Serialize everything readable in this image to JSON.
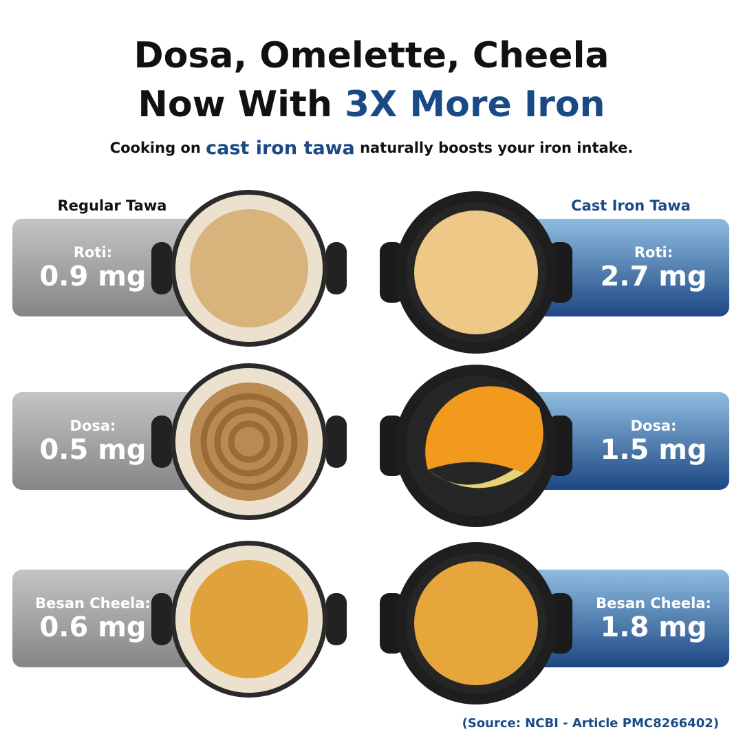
{
  "header": {
    "title_line1": "Dosa, Omelette, Cheela",
    "title_line2_prefix": "Now With",
    "title_line2_highlight": "3X More Iron",
    "subtitle_prefix": "Cooking on",
    "subtitle_highlight": "cast iron tawa",
    "subtitle_suffix": "naturally boosts your iron intake."
  },
  "columns": [
    {
      "label": "Regular Tawa",
      "items": [
        {
          "name": "Roti:",
          "value": "0.9 mg"
        },
        {
          "name": "Dosa:",
          "value": "0.5 mg"
        },
        {
          "name": "Besan Cheela:",
          "value": "0.6 mg"
        }
      ]
    },
    {
      "label": "Cast Iron Tawa",
      "items": [
        {
          "name": "Roti:",
          "value": "2.7 mg"
        },
        {
          "name": "Dosa:",
          "value": "1.5 mg"
        },
        {
          "name": "Besan Cheela:",
          "value": "1.8 mg"
        }
      ]
    }
  ],
  "source": "(Source: NCBI - Article PMC8266402)"
}
